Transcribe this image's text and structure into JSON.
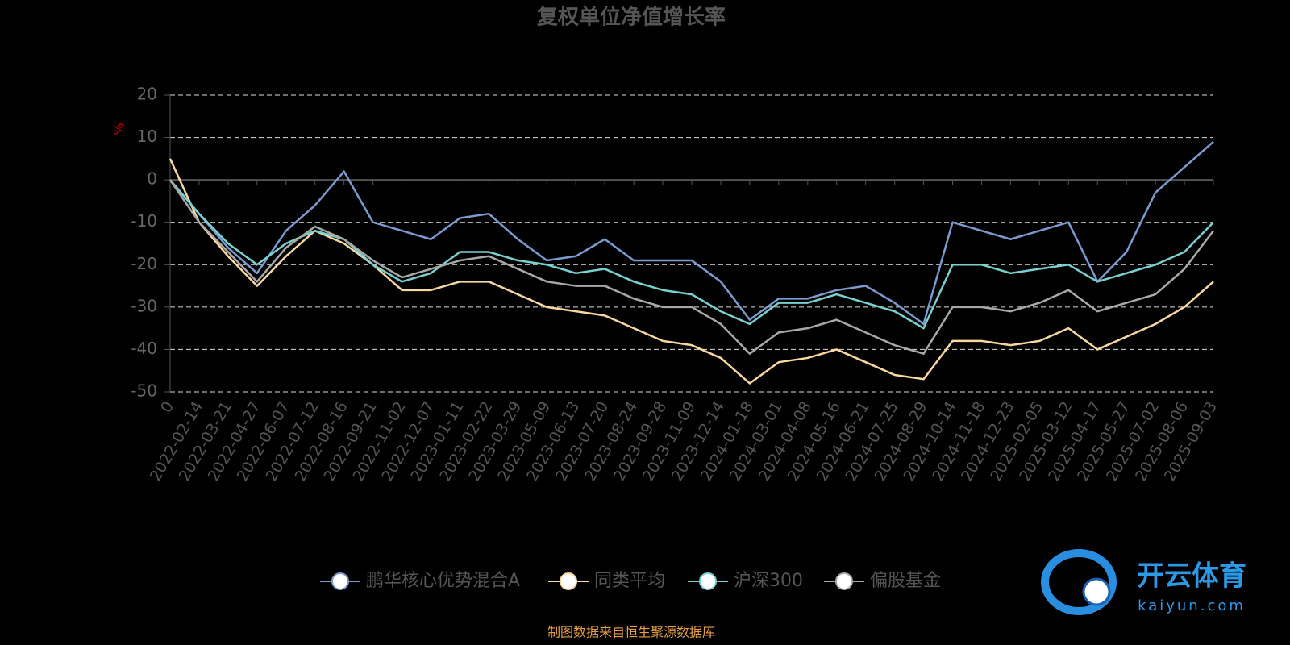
{
  "chart_data": {
    "type": "line",
    "title": "复权单位净值增长率",
    "y_label": "%",
    "categories": [
      "0",
      "2022-02-14",
      "2022-03-21",
      "2022-04-27",
      "2022-06-07",
      "2022-07-12",
      "2022-08-16",
      "2022-09-21",
      "2022-11-02",
      "2022-12-07",
      "2023-01-11",
      "2023-02-22",
      "2023-03-29",
      "2023-05-09",
      "2023-06-13",
      "2023-07-20",
      "2023-08-24",
      "2023-09-28",
      "2023-11-09",
      "2023-12-14",
      "2024-01-18",
      "2024-03-01",
      "2024-04-08",
      "2024-05-16",
      "2024-06-21",
      "2024-07-25",
      "2024-08-29",
      "2024-10-14",
      "2024-11-18",
      "2024-12-23",
      "2025-02-05",
      "2025-03-12",
      "2025-04-17",
      "2025-05-27",
      "2025-07-02",
      "2025-08-06",
      "2025-09-03"
    ],
    "series": [
      {
        "name": "鹏华核心优势混合A",
        "color": "#7b9bd0",
        "values": [
          0,
          -8,
          -16,
          -22,
          -12,
          -6,
          2,
          -10,
          -12,
          -14,
          -9,
          -8,
          -14,
          -19,
          -18,
          -14,
          -19,
          -19,
          -19,
          -24,
          -33,
          -28,
          -28,
          -26,
          -25,
          -29,
          -34,
          -10,
          -12,
          -14,
          -12,
          -10,
          -24,
          -17,
          -3,
          3,
          9
        ]
      },
      {
        "name": "同类平均",
        "color": "#f9d8a0",
        "values": [
          5,
          -10,
          -18,
          -25,
          -18,
          -12,
          -15,
          -20,
          -26,
          -26,
          -24,
          -24,
          -27,
          -30,
          -31,
          -32,
          -35,
          -38,
          -39,
          -42,
          -48,
          -43,
          -42,
          -40,
          -43,
          -46,
          -47,
          -38,
          -38,
          -39,
          -38,
          -35,
          -40,
          -37,
          -34,
          -30,
          -24
        ]
      },
      {
        "name": "沪深300",
        "color": "#77d1d1",
        "values": [
          0,
          -8,
          -15,
          -20,
          -15,
          -12,
          -14,
          -20,
          -24,
          -22,
          -17,
          -17,
          -19,
          -20,
          -22,
          -21,
          -24,
          -26,
          -27,
          -31,
          -34,
          -29,
          -29,
          -27,
          -29,
          -31,
          -35,
          -20,
          -20,
          -22,
          -21,
          -20,
          -24,
          -22,
          -20,
          -17,
          -10
        ]
      },
      {
        "name": "偏股基金",
        "color": "#a8a8a8",
        "values": [
          0,
          -10,
          -17,
          -24,
          -16,
          -11,
          -14,
          -19,
          -23,
          -21,
          -19,
          -18,
          -21,
          -24,
          -25,
          -25,
          -28,
          -30,
          -30,
          -34,
          -41,
          -36,
          -35,
          -33,
          -36,
          -39,
          -41,
          -30,
          -30,
          -31,
          -29,
          -26,
          -31,
          -29,
          -27,
          -21,
          -12
        ]
      }
    ],
    "ylim": [
      -50,
      20
    ],
    "yticks": [
      20,
      10,
      0,
      -10,
      -20,
      -30,
      -40,
      -50
    ],
    "grid": true,
    "source": "制图数据来自恒生聚源数据库"
  },
  "watermark": {
    "brand": "开云体育",
    "site": "kaiyun.com"
  }
}
